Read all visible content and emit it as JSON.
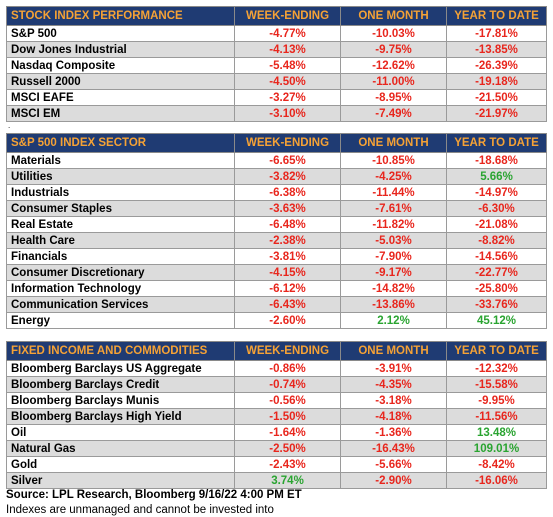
{
  "sections": [
    {
      "headers": [
        "STOCK INDEX PERFORMANCE",
        "WEEK-ENDING",
        "ONE MONTH",
        "YEAR TO DATE"
      ],
      "rows": [
        [
          "S&P 500",
          "-4.77%",
          "-10.03%",
          "-17.81%"
        ],
        [
          "Dow Jones Industrial",
          "-4.13%",
          "-9.75%",
          "-13.85%"
        ],
        [
          "Nasdaq Composite",
          "-5.48%",
          "-12.62%",
          "-26.39%"
        ],
        [
          "Russell 2000",
          "-4.50%",
          "-11.00%",
          "-19.18%"
        ],
        [
          "MSCI EAFE",
          "-3.27%",
          "-8.95%",
          "-21.50%"
        ],
        [
          "MSCI EM",
          "-3.10%",
          "-7.49%",
          "-21.97%"
        ]
      ]
    },
    {
      "headers": [
        "S&P 500 INDEX SECTOR",
        "WEEK-ENDING",
        "ONE MONTH",
        "YEAR TO DATE"
      ],
      "rows": [
        [
          "Materials",
          "-6.65%",
          "-10.85%",
          "-18.68%"
        ],
        [
          "Utilities",
          "-3.82%",
          "-4.25%",
          "5.66%"
        ],
        [
          "Industrials",
          "-6.38%",
          "-11.44%",
          "-14.97%"
        ],
        [
          "Consumer Staples",
          "-3.63%",
          "-7.61%",
          "-6.30%"
        ],
        [
          "Real Estate",
          "-6.48%",
          "-11.82%",
          "-21.08%"
        ],
        [
          "Health Care",
          "-2.38%",
          "-5.03%",
          "-8.82%"
        ],
        [
          "Financials",
          "-3.81%",
          "-7.90%",
          "-14.56%"
        ],
        [
          "Consumer Discretionary",
          "-4.15%",
          "-9.17%",
          "-22.77%"
        ],
        [
          "Information Technology",
          "-6.12%",
          "-14.82%",
          "-25.80%"
        ],
        [
          "Communication Services",
          "-6.43%",
          "-13.86%",
          "-33.76%"
        ],
        [
          "Energy",
          "-2.60%",
          "2.12%",
          "45.12%"
        ]
      ]
    },
    {
      "headers": [
        "FIXED INCOME AND COMMODITIES",
        "WEEK-ENDING",
        "ONE MONTH",
        "YEAR TO DATE"
      ],
      "rows": [
        [
          "Bloomberg Barclays US Aggregate",
          "-0.86%",
          "-3.91%",
          "-12.32%"
        ],
        [
          "Bloomberg Barclays Credit",
          "-0.74%",
          "-4.35%",
          "-15.58%"
        ],
        [
          "Bloomberg Barclays Munis",
          "-0.56%",
          "-3.18%",
          "-9.95%"
        ],
        [
          "Bloomberg Barclays High Yield",
          "-1.50%",
          "-4.18%",
          "-11.56%"
        ],
        [
          "Oil",
          "-1.64%",
          "-1.36%",
          "13.48%"
        ],
        [
          "Natural Gas",
          "-2.50%",
          "-16.43%",
          "109.01%"
        ],
        [
          "Gold",
          "-2.43%",
          "-5.66%",
          "-8.42%"
        ],
        [
          "Silver",
          "3.74%",
          "-2.90%",
          "-16.06%"
        ]
      ]
    }
  ],
  "separator": ".",
  "footer": {
    "source": "Source: LPL Research, Bloomberg 9/16/22 4:00 PM ET",
    "disclaimer": "Indexes are unmanaged and cannot be invested into"
  },
  "colors": {
    "header_bg": "#1f3b73",
    "header_text": "#f5a236",
    "negative": "#e8261d",
    "positive": "#2aa431",
    "alt_row_bg": "#dcdcdc"
  }
}
